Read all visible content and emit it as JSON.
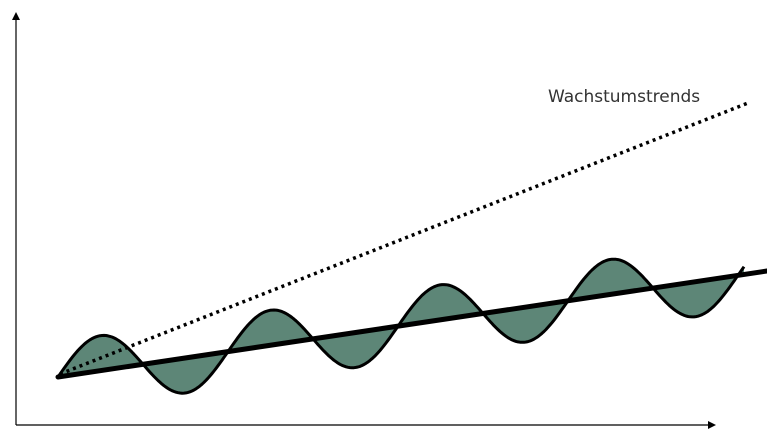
{
  "diagram": {
    "label": "Wachstumstrends",
    "colors": {
      "wave_fill": "#5d8677",
      "line": "#000000",
      "axis": "#000000",
      "label_text": "#333333"
    }
  }
}
